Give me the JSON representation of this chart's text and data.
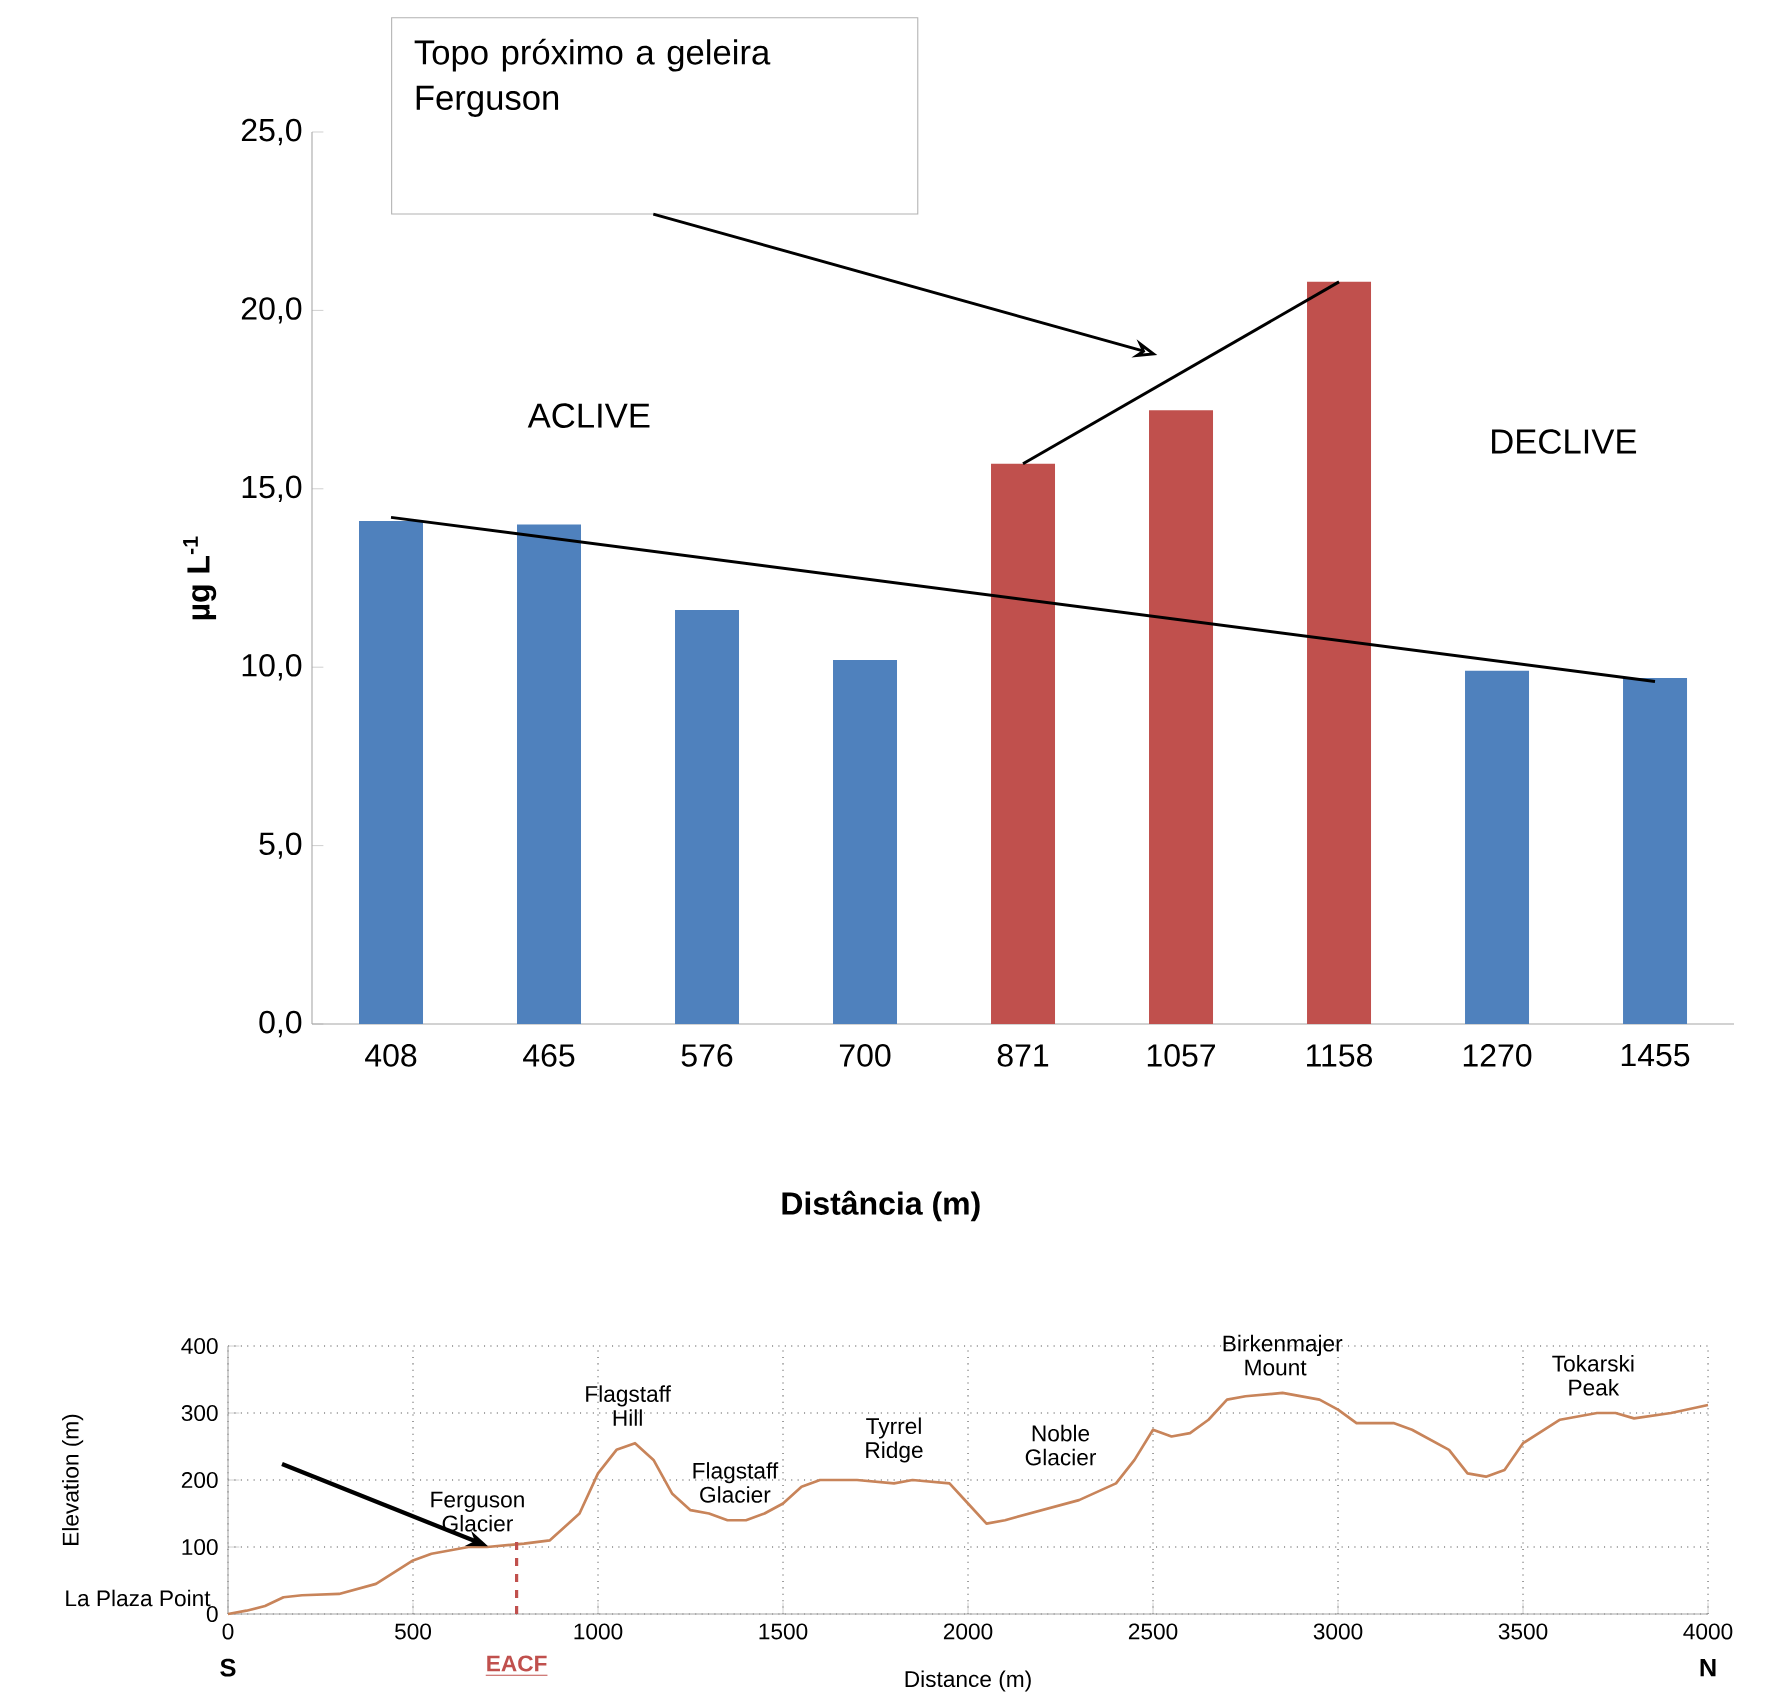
{
  "chart_data": [
    {
      "type": "bar",
      "categories": [
        "408",
        "465",
        "576",
        "700",
        "871",
        "1057",
        "1158",
        "1270",
        "1455"
      ],
      "series": [
        {
          "type": "bar",
          "colors": [
            "#4f81bd",
            "#4f81bd",
            "#4f81bd",
            "#4f81bd",
            "#c0504d",
            "#c0504d",
            "#c0504d",
            "#4f81bd",
            "#4f81bd"
          ],
          "values": [
            14.1,
            14.0,
            11.6,
            10.2,
            15.7,
            17.2,
            20.8,
            9.9,
            9.7
          ]
        },
        {
          "type": "line",
          "color": "#000000",
          "values": [
            14.2,
            null,
            null,
            null,
            null,
            null,
            null,
            null,
            9.6
          ]
        }
      ],
      "ylim": [
        0,
        25
      ],
      "yticks": [
        {
          "value": 0,
          "label": "0,0"
        },
        {
          "value": 5,
          "label": "5,0"
        },
        {
          "value": 10,
          "label": "10,0"
        },
        {
          "value": 15,
          "label": "15,0"
        },
        {
          "value": 20,
          "label": "20,0"
        },
        {
          "value": 25,
          "label": "25,0"
        }
      ],
      "xlabel": "Distância (m)",
      "ylabel": "µg L$^{-1}$",
      "annotations": [
        "Topo próximo a geleira Ferguson",
        "ACLIVE",
        "DECLIVE"
      ]
    },
    {
      "type": "line",
      "x": [
        0,
        50,
        100,
        150,
        200,
        300,
        400,
        500,
        550,
        650,
        700,
        800,
        870,
        950,
        1000,
        1050,
        1100,
        1150,
        1200,
        1250,
        1300,
        1350,
        1400,
        1450,
        1500,
        1550,
        1600,
        1700,
        1800,
        1850,
        1950,
        2000,
        2050,
        2100,
        2200,
        2300,
        2400,
        2450,
        2500,
        2550,
        2600,
        2650,
        2700,
        2750,
        2850,
        2950,
        3000,
        3050,
        3150,
        3200,
        3300,
        3350,
        3400,
        3450,
        3500,
        3600,
        3700,
        3750,
        3800,
        3900,
        4000
      ],
      "series": [
        {
          "color": "#c8845a",
          "values": [
            0,
            5,
            12,
            25,
            28,
            30,
            45,
            80,
            90,
            100,
            100,
            105,
            110,
            150,
            210,
            245,
            255,
            230,
            180,
            155,
            150,
            140,
            140,
            150,
            165,
            190,
            200,
            200,
            195,
            200,
            195,
            165,
            135,
            140,
            155,
            170,
            195,
            230,
            275,
            265,
            270,
            290,
            320,
            325,
            330,
            320,
            305,
            285,
            285,
            275,
            245,
            210,
            205,
            215,
            255,
            290,
            300,
            300,
            292,
            300,
            312
          ]
        }
      ],
      "xlim": [
        0,
        4000
      ],
      "xticks": [
        0,
        500,
        1000,
        1500,
        2000,
        2500,
        3000,
        3500,
        4000
      ],
      "ylim": [
        0,
        400
      ],
      "yticks": [
        0,
        100,
        200,
        300,
        400
      ],
      "grid": true,
      "xlabel": "Distance (m)",
      "ylabel": "Elevation (m)",
      "ref_lines": [
        {
          "axis": "x",
          "value": 780,
          "label": "EACF",
          "color": "#c0504d",
          "line_style": "dashed"
        }
      ],
      "annotations": [
        {
          "text": "La Plaza Point",
          "x": 0,
          "y": 0
        },
        {
          "text": "Ferguson Glacier",
          "x": 703,
          "y": 101
        },
        {
          "text": "Flagstaff Hill",
          "x": 1080,
          "y": 255
        },
        {
          "text": "Flagstaff Glacier",
          "x": 1370,
          "y": 140
        },
        {
          "text": "Tyrrel Ridge",
          "x": 1800,
          "y": 200
        },
        {
          "text": "Noble Glacier",
          "x": 2250,
          "y": 160
        },
        {
          "text": "Birkenmajer Mount",
          "x": 2830,
          "y": 330
        },
        {
          "text": "Tokarski Peak",
          "x": 3690,
          "y": 300
        },
        "S",
        "N"
      ]
    }
  ]
}
